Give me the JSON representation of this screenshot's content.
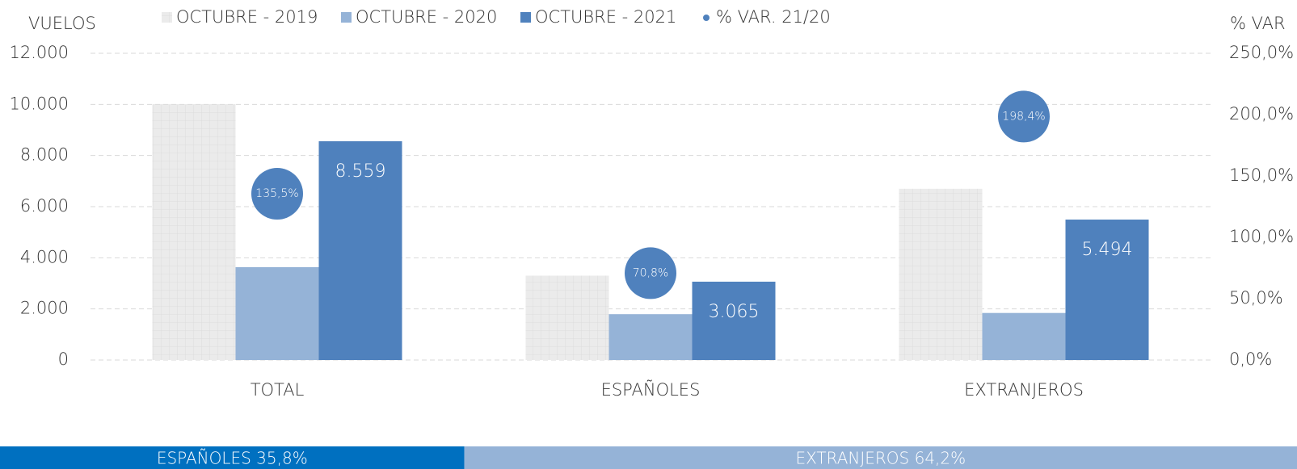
{
  "chart_data": {
    "type": "bar",
    "y_label": "VUELOS",
    "y2_label": "% VAR",
    "categories": [
      "TOTAL",
      "ESPAÑOLES",
      "EXTRANJEROS"
    ],
    "series": [
      {
        "name": "OCTUBRE - 2019",
        "color": "#ebebeb",
        "pattern": true,
        "values": [
          10000,
          3300,
          6700
        ]
      },
      {
        "name": "OCTUBRE - 2020",
        "color": "#95b3d7",
        "values": [
          3634,
          1794,
          1841
        ]
      },
      {
        "name": "OCTUBRE - 2021",
        "color": "#4f81bd",
        "values": [
          8559,
          3065,
          5494
        ],
        "value_labels": [
          "8.559",
          "3.065",
          "5.494"
        ]
      },
      {
        "name": "% VAR. 21/20",
        "color": "#4f81bd",
        "type": "scatter",
        "axis": "y2",
        "values": [
          135.5,
          70.8,
          198.4
        ],
        "value_labels": [
          "135,5%",
          "70,8%",
          "198,4%"
        ]
      }
    ],
    "ylim": [
      0,
      12000
    ],
    "yticks": [
      0,
      {
        "value": 2000,
        "label": "2.000"
      },
      {
        "value": 4000,
        "label": "4.000"
      },
      {
        "value": 6000,
        "label": "6.000"
      },
      {
        "value": 8000,
        "label": "8.000"
      },
      {
        "value": 10000,
        "label": "10.000"
      },
      {
        "value": 12000,
        "label": "12.000"
      }
    ],
    "y2lim": [
      0,
      250
    ],
    "y2ticks": [
      {
        "value": 0,
        "label": "0,0%"
      },
      {
        "value": 50,
        "label": "50,0%"
      },
      {
        "value": 100,
        "label": "100,0%"
      },
      {
        "value": 150,
        "label": "150,0%"
      },
      {
        "value": 200,
        "label": "200,0%"
      },
      {
        "value": 250,
        "label": "250,0%"
      }
    ],
    "grid": true,
    "share_bar": [
      {
        "label": "ESPAÑOLES 35,8%",
        "value": 35.8,
        "color": "#0070c0"
      },
      {
        "label": "EXTRANJEROS 64,2%",
        "value": 64.2,
        "color": "#95b3d7"
      }
    ]
  }
}
